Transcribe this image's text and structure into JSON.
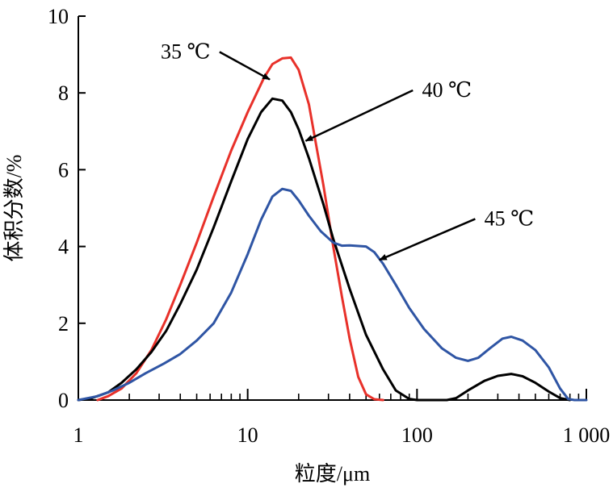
{
  "chart_data": {
    "type": "line",
    "title": "",
    "xlabel": "粒度/μm",
    "ylabel": "体积分数/%",
    "x_scale": "log",
    "xlim": [
      1,
      1000
    ],
    "ylim": [
      0,
      10
    ],
    "x_ticks": [
      {
        "value": 1,
        "label": "1"
      },
      {
        "value": 10,
        "label": "10"
      },
      {
        "value": 100,
        "label": "100"
      },
      {
        "value": 1000,
        "label": "1 000"
      }
    ],
    "y_ticks": [
      {
        "value": 0,
        "label": "0"
      },
      {
        "value": 2,
        "label": "2"
      },
      {
        "value": 4,
        "label": "4"
      },
      {
        "value": 6,
        "label": "6"
      },
      {
        "value": 8,
        "label": "8"
      },
      {
        "value": 10,
        "label": "10"
      }
    ],
    "grid": false,
    "legend": "none",
    "series": [
      {
        "color": "#e8312a",
        "points": [
          [
            1.3,
            0
          ],
          [
            1.5,
            0.1
          ],
          [
            1.8,
            0.3
          ],
          [
            2.2,
            0.7
          ],
          [
            2.7,
            1.3
          ],
          [
            3.3,
            2.1
          ],
          [
            4,
            3.0
          ],
          [
            5,
            4.1
          ],
          [
            6.3,
            5.3
          ],
          [
            8,
            6.5
          ],
          [
            10,
            7.5
          ],
          [
            12.5,
            8.4
          ],
          [
            14,
            8.75
          ],
          [
            16,
            8.9
          ],
          [
            18,
            8.92
          ],
          [
            20,
            8.6
          ],
          [
            23,
            7.7
          ],
          [
            25,
            6.8
          ],
          [
            28,
            5.6
          ],
          [
            32,
            4.0
          ],
          [
            36,
            2.7
          ],
          [
            40,
            1.6
          ],
          [
            45,
            0.6
          ],
          [
            50,
            0.15
          ],
          [
            56,
            0.02
          ],
          [
            63,
            0
          ]
        ]
      },
      {
        "color": "#000000",
        "points": [
          [
            1,
            0
          ],
          [
            1.2,
            0.05
          ],
          [
            1.5,
            0.2
          ],
          [
            1.8,
            0.45
          ],
          [
            2.2,
            0.8
          ],
          [
            2.7,
            1.25
          ],
          [
            3.3,
            1.8
          ],
          [
            4,
            2.5
          ],
          [
            5,
            3.4
          ],
          [
            6.3,
            4.5
          ],
          [
            8,
            5.7
          ],
          [
            10,
            6.8
          ],
          [
            12,
            7.5
          ],
          [
            14,
            7.85
          ],
          [
            16,
            7.8
          ],
          [
            18,
            7.5
          ],
          [
            20,
            7.05
          ],
          [
            23,
            6.3
          ],
          [
            28,
            5.1
          ],
          [
            32,
            4.2
          ],
          [
            40,
            2.9
          ],
          [
            50,
            1.7
          ],
          [
            63,
            0.8
          ],
          [
            75,
            0.25
          ],
          [
            90,
            0.03
          ],
          [
            100,
            0
          ],
          [
            150,
            0
          ],
          [
            170,
            0.05
          ],
          [
            200,
            0.25
          ],
          [
            250,
            0.5
          ],
          [
            300,
            0.63
          ],
          [
            360,
            0.68
          ],
          [
            420,
            0.62
          ],
          [
            500,
            0.45
          ],
          [
            600,
            0.22
          ],
          [
            700,
            0.05
          ],
          [
            800,
            0
          ]
        ]
      },
      {
        "color": "#2f55a4",
        "points": [
          [
            1,
            0
          ],
          [
            1.3,
            0.1
          ],
          [
            1.6,
            0.25
          ],
          [
            2,
            0.45
          ],
          [
            2.5,
            0.7
          ],
          [
            3.2,
            0.95
          ],
          [
            4,
            1.2
          ],
          [
            5,
            1.55
          ],
          [
            6.3,
            2.0
          ],
          [
            8,
            2.8
          ],
          [
            10,
            3.8
          ],
          [
            12,
            4.7
          ],
          [
            14,
            5.3
          ],
          [
            16,
            5.5
          ],
          [
            18,
            5.45
          ],
          [
            20,
            5.2
          ],
          [
            23,
            4.8
          ],
          [
            27,
            4.4
          ],
          [
            32,
            4.1
          ],
          [
            36,
            4.02
          ],
          [
            40,
            4.03
          ],
          [
            50,
            4.0
          ],
          [
            56,
            3.85
          ],
          [
            63,
            3.55
          ],
          [
            75,
            3.0
          ],
          [
            90,
            2.4
          ],
          [
            110,
            1.85
          ],
          [
            140,
            1.35
          ],
          [
            170,
            1.1
          ],
          [
            200,
            1.02
          ],
          [
            230,
            1.1
          ],
          [
            270,
            1.35
          ],
          [
            320,
            1.6
          ],
          [
            360,
            1.65
          ],
          [
            420,
            1.55
          ],
          [
            500,
            1.3
          ],
          [
            600,
            0.85
          ],
          [
            700,
            0.3
          ],
          [
            780,
            0.03
          ],
          [
            850,
            0
          ],
          [
            1000,
            0
          ]
        ]
      }
    ],
    "annotations": [
      {
        "text": "35 ℃",
        "text_at": [
          4.3,
          8.9
        ],
        "arrow_to": [
          13.5,
          8.35
        ]
      },
      {
        "text": "40 ℃",
        "text_at": [
          150,
          7.9
        ],
        "arrow_to": [
          22,
          6.75
        ]
      },
      {
        "text": "45 ℃",
        "text_at": [
          350,
          4.55
        ],
        "arrow_to": [
          60,
          3.65
        ]
      }
    ]
  }
}
